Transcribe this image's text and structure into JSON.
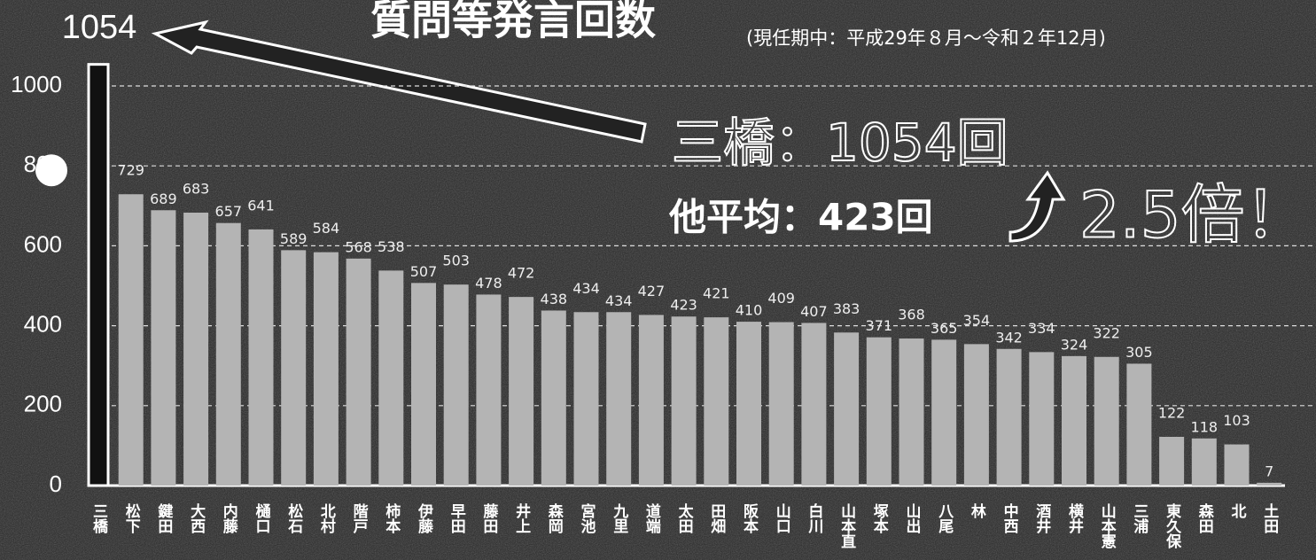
{
  "chart_data": {
    "type": "bar",
    "title": "質問等発言回数",
    "subtitle": "(現任期中：平成29年８月～令和２年12月)",
    "annotations": [
      "三橋：1054回",
      "他平均：423回",
      "2.5倍！"
    ],
    "categories": [
      "三橋",
      "松下",
      "鍵田",
      "大西",
      "内藤",
      "樋口",
      "松石",
      "北村",
      "階戸",
      "柿本",
      "伊藤",
      "早田",
      "藤田",
      "井上",
      "森岡",
      "宮池",
      "九里",
      "道端",
      "太田",
      "田畑",
      "阪本",
      "山口",
      "白川",
      "山本直",
      "塚本",
      "山出",
      "八尾",
      "林",
      "中西",
      "酒井",
      "横井",
      "山本憲",
      "三浦",
      "東久保",
      "森田",
      "北",
      "土田"
    ],
    "values": [
      1054,
      729,
      689,
      683,
      657,
      641,
      589,
      584,
      568,
      538,
      507,
      503,
      478,
      472,
      438,
      434,
      434,
      427,
      423,
      421,
      410,
      409,
      407,
      383,
      371,
      368,
      365,
      354,
      342,
      334,
      324,
      322,
      305,
      122,
      118,
      103,
      7
    ],
    "color": "#b4b4b4",
    "ylim": [
      0,
      1060
    ],
    "yticks": [
      0,
      200,
      400,
      600,
      800,
      1000
    ],
    "grid": true
  }
}
